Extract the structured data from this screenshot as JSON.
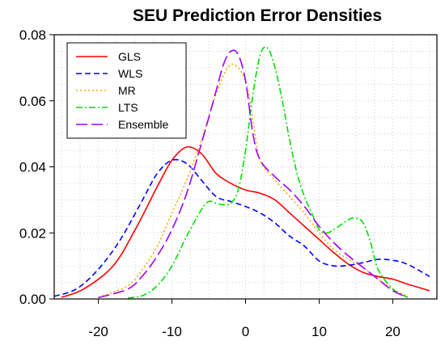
{
  "chart_data": {
    "type": "line",
    "title": "SEU Prediction Error Densities",
    "xlabel": "",
    "ylabel": "",
    "xlim": [
      -26,
      26
    ],
    "ylim": [
      0,
      0.08
    ],
    "xticks": [
      -20,
      -10,
      0,
      10,
      20
    ],
    "yticks": [
      "0.00",
      "0.02",
      "0.04",
      "0.06",
      "0.08"
    ],
    "grid": true,
    "legend_position": "top-left",
    "series": [
      {
        "name": "GLS",
        "color": "#ff0000",
        "dash": "solid",
        "points": [
          [
            -25,
            0.0005
          ],
          [
            -22,
            0.003
          ],
          [
            -18,
            0.01
          ],
          [
            -15,
            0.021
          ],
          [
            -12,
            0.034
          ],
          [
            -10,
            0.042
          ],
          [
            -8,
            0.046
          ],
          [
            -6,
            0.044
          ],
          [
            -4,
            0.038
          ],
          [
            -2,
            0.035
          ],
          [
            0,
            0.033
          ],
          [
            2,
            0.032
          ],
          [
            4,
            0.03
          ],
          [
            6,
            0.026
          ],
          [
            8,
            0.022
          ],
          [
            10,
            0.018
          ],
          [
            12,
            0.014
          ],
          [
            14,
            0.0105
          ],
          [
            16,
            0.008
          ],
          [
            18,
            0.0068
          ],
          [
            20,
            0.006
          ],
          [
            22,
            0.0045
          ],
          [
            25,
            0.0025
          ]
        ]
      },
      {
        "name": "WLS",
        "color": "#0000ff",
        "dash": "dashed",
        "points": [
          [
            -26,
            0.0008
          ],
          [
            -23,
            0.003
          ],
          [
            -20,
            0.009
          ],
          [
            -17,
            0.018
          ],
          [
            -14,
            0.03
          ],
          [
            -12,
            0.038
          ],
          [
            -10,
            0.042
          ],
          [
            -8,
            0.041
          ],
          [
            -6,
            0.036
          ],
          [
            -4,
            0.031
          ],
          [
            -2,
            0.0295
          ],
          [
            0,
            0.028
          ],
          [
            2,
            0.026
          ],
          [
            4,
            0.023
          ],
          [
            6,
            0.019
          ],
          [
            8,
            0.016
          ],
          [
            10,
            0.0115
          ],
          [
            12,
            0.01
          ],
          [
            14,
            0.0102
          ],
          [
            16,
            0.011
          ],
          [
            18,
            0.012
          ],
          [
            20,
            0.0117
          ],
          [
            22,
            0.0105
          ],
          [
            25,
            0.0068
          ]
        ]
      },
      {
        "name": "MR",
        "color": "#ffa500",
        "dash": "dotted",
        "points": [
          [
            -20,
            0.0005
          ],
          [
            -16,
            0.004
          ],
          [
            -14,
            0.009
          ],
          [
            -12,
            0.016
          ],
          [
            -10,
            0.026
          ],
          [
            -8,
            0.036
          ],
          [
            -6,
            0.048
          ],
          [
            -4,
            0.062
          ],
          [
            -2,
            0.071
          ],
          [
            0,
            0.066
          ],
          [
            1,
            0.054
          ],
          [
            2,
            0.042
          ],
          [
            4,
            0.036
          ],
          [
            6,
            0.031
          ],
          [
            8,
            0.026
          ],
          [
            10,
            0.02
          ],
          [
            12,
            0.015
          ],
          [
            14,
            0.012
          ],
          [
            16,
            0.0095
          ],
          [
            18,
            0.006
          ],
          [
            20,
            0.003
          ],
          [
            22,
            0.0008
          ]
        ]
      },
      {
        "name": "LTS",
        "color": "#00e000",
        "dash": "dashdot",
        "points": [
          [
            -16,
            0.0003
          ],
          [
            -14,
            0.001
          ],
          [
            -12,
            0.004
          ],
          [
            -10,
            0.01
          ],
          [
            -8,
            0.019
          ],
          [
            -6,
            0.027
          ],
          [
            -5,
            0.0295
          ],
          [
            -4,
            0.029
          ],
          [
            -3,
            0.0285
          ],
          [
            -2,
            0.029
          ],
          [
            -1,
            0.033
          ],
          [
            0,
            0.045
          ],
          [
            1,
            0.062
          ],
          [
            2,
            0.074
          ],
          [
            3,
            0.076
          ],
          [
            4,
            0.07
          ],
          [
            5,
            0.06
          ],
          [
            6,
            0.048
          ],
          [
            7,
            0.038
          ],
          [
            8,
            0.031
          ],
          [
            9,
            0.026
          ],
          [
            10,
            0.021
          ],
          [
            11,
            0.02
          ],
          [
            12,
            0.021
          ],
          [
            14,
            0.024
          ],
          [
            15,
            0.0245
          ],
          [
            16,
            0.023
          ],
          [
            17,
            0.017
          ],
          [
            18,
            0.009
          ],
          [
            20,
            0.003
          ],
          [
            22,
            0.0005
          ]
        ]
      },
      {
        "name": "Ensemble",
        "color": "#a000ff",
        "dash": "longdash",
        "points": [
          [
            -20,
            0.0004
          ],
          [
            -16,
            0.003
          ],
          [
            -14,
            0.007
          ],
          [
            -12,
            0.013
          ],
          [
            -10,
            0.021
          ],
          [
            -8,
            0.032
          ],
          [
            -6,
            0.047
          ],
          [
            -4,
            0.063
          ],
          [
            -3,
            0.071
          ],
          [
            -2,
            0.075
          ],
          [
            -1,
            0.074
          ],
          [
            0,
            0.066
          ],
          [
            1,
            0.05
          ],
          [
            2,
            0.042
          ],
          [
            4,
            0.037
          ],
          [
            6,
            0.033
          ],
          [
            8,
            0.028
          ],
          [
            10,
            0.022
          ],
          [
            12,
            0.017
          ],
          [
            14,
            0.013
          ],
          [
            16,
            0.0095
          ],
          [
            18,
            0.006
          ],
          [
            20,
            0.0025
          ],
          [
            22,
            0.0005
          ]
        ]
      }
    ]
  }
}
